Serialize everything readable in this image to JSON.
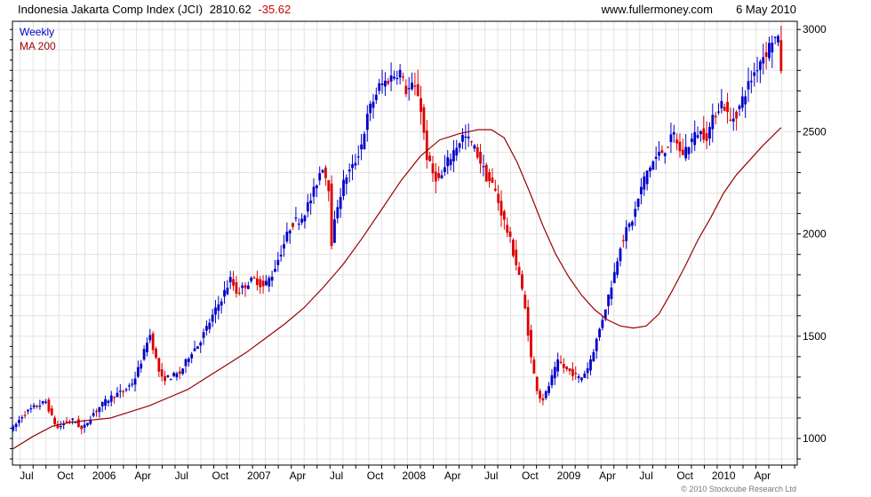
{
  "header": {
    "title": "Indonesia Jakarta Comp Index (JCI)",
    "last": "2810.62",
    "change": "-35.62",
    "site": "www.fullermoney.com",
    "date": "6 May 2010"
  },
  "legend": {
    "weekly": "Weekly",
    "ma": "MA 200"
  },
  "copyright": "© 2010 Stockcube Research Ltd",
  "colors": {
    "up": "#0000cc",
    "down": "#dd0000",
    "ma": "#990000",
    "change": "#cc0000",
    "grid": "#e2e2e2"
  },
  "chart_data": {
    "type": "line",
    "title": "Indonesia Jakarta Comp Index (JCI)",
    "y_ticks": [
      1000,
      1500,
      2000,
      2500,
      3000
    ],
    "y_range": [
      870,
      3040
    ],
    "x_labels": [
      {
        "label": "Jul",
        "m": 6.5
      },
      {
        "label": "Oct",
        "m": 9.5
      },
      {
        "label": "2006",
        "m": 12.5
      },
      {
        "label": "Apr",
        "m": 15.5
      },
      {
        "label": "Jul",
        "m": 18.5
      },
      {
        "label": "Oct",
        "m": 21.5
      },
      {
        "label": "2007",
        "m": 24.5
      },
      {
        "label": "Apr",
        "m": 27.5
      },
      {
        "label": "Jul",
        "m": 30.5
      },
      {
        "label": "Oct",
        "m": 33.5
      },
      {
        "label": "2008",
        "m": 36.5
      },
      {
        "label": "Apr",
        "m": 39.5
      },
      {
        "label": "Jul",
        "m": 42.5
      },
      {
        "label": "Oct",
        "m": 45.5
      },
      {
        "label": "2009",
        "m": 48.5
      },
      {
        "label": "Apr",
        "m": 51.5
      },
      {
        "label": "Jul",
        "m": 54.5
      },
      {
        "label": "Oct",
        "m": 57.5
      },
      {
        "label": "2010",
        "m": 60.5
      },
      {
        "label": "Apr",
        "m": 63.5
      }
    ],
    "x_range": [
      5.4,
      66.2
    ],
    "price_anchors": [
      [
        5.45,
        1050
      ],
      [
        6.2,
        1115
      ],
      [
        7.0,
        1150
      ],
      [
        8.0,
        1180
      ],
      [
        8.5,
        1095
      ],
      [
        8.9,
        1050
      ],
      [
        9.5,
        1080
      ],
      [
        10.2,
        1090
      ],
      [
        10.8,
        1040
      ],
      [
        11.6,
        1120
      ],
      [
        12.4,
        1170
      ],
      [
        13.2,
        1210
      ],
      [
        14.0,
        1230
      ],
      [
        14.8,
        1280
      ],
      [
        15.5,
        1400
      ],
      [
        16.0,
        1520
      ],
      [
        16.4,
        1420
      ],
      [
        16.9,
        1290
      ],
      [
        17.6,
        1300
      ],
      [
        18.4,
        1320
      ],
      [
        19.2,
        1420
      ],
      [
        19.8,
        1460
      ],
      [
        20.6,
        1560
      ],
      [
        21.4,
        1660
      ],
      [
        22.3,
        1780
      ],
      [
        22.8,
        1710
      ],
      [
        23.6,
        1760
      ],
      [
        24.2,
        1780
      ],
      [
        24.8,
        1740
      ],
      [
        25.5,
        1800
      ],
      [
        26.3,
        1930
      ],
      [
        27.0,
        2050
      ],
      [
        27.8,
        2080
      ],
      [
        28.6,
        2180
      ],
      [
        29.4,
        2340
      ],
      [
        29.9,
        2230
      ],
      [
        30.1,
        1950
      ],
      [
        30.6,
        2150
      ],
      [
        31.2,
        2280
      ],
      [
        31.8,
        2330
      ],
      [
        32.4,
        2430
      ],
      [
        33.0,
        2600
      ],
      [
        33.8,
        2720
      ],
      [
        34.6,
        2760
      ],
      [
        35.4,
        2800
      ],
      [
        35.9,
        2700
      ],
      [
        36.4,
        2720
      ],
      [
        36.9,
        2680
      ],
      [
        37.5,
        2380
      ],
      [
        37.9,
        2300
      ],
      [
        38.5,
        2260
      ],
      [
        39.1,
        2350
      ],
      [
        39.7,
        2420
      ],
      [
        40.3,
        2480
      ],
      [
        40.9,
        2450
      ],
      [
        41.5,
        2380
      ],
      [
        42.1,
        2280
      ],
      [
        42.7,
        2230
      ],
      [
        43.3,
        2100
      ],
      [
        43.9,
        1980
      ],
      [
        44.4,
        1860
      ],
      [
        44.7,
        1790
      ],
      [
        45.2,
        1600
      ],
      [
        45.6,
        1380
      ],
      [
        46.0,
        1250
      ],
      [
        46.4,
        1180
      ],
      [
        46.8,
        1230
      ],
      [
        47.2,
        1300
      ],
      [
        47.7,
        1380
      ],
      [
        48.2,
        1340
      ],
      [
        48.8,
        1320
      ],
      [
        49.4,
        1290
      ],
      [
        50.0,
        1350
      ],
      [
        50.6,
        1470
      ],
      [
        51.0,
        1560
      ],
      [
        51.5,
        1680
      ],
      [
        52.0,
        1800
      ],
      [
        52.5,
        1950
      ],
      [
        53.0,
        2020
      ],
      [
        53.5,
        2080
      ],
      [
        54.0,
        2200
      ],
      [
        54.5,
        2300
      ],
      [
        55.2,
        2370
      ],
      [
        56.0,
        2420
      ],
      [
        56.7,
        2490
      ],
      [
        57.2,
        2380
      ],
      [
        57.8,
        2440
      ],
      [
        58.5,
        2500
      ],
      [
        59.2,
        2480
      ],
      [
        59.9,
        2600
      ],
      [
        60.4,
        2650
      ],
      [
        61.0,
        2550
      ],
      [
        61.6,
        2600
      ],
      [
        62.2,
        2700
      ],
      [
        62.8,
        2780
      ],
      [
        63.4,
        2860
      ],
      [
        63.9,
        2900
      ],
      [
        64.3,
        2960
      ],
      [
        64.7,
        2950
      ],
      [
        64.95,
        2810
      ]
    ],
    "ma200": [
      [
        5.45,
        950
      ],
      [
        7.0,
        1010
      ],
      [
        8.5,
        1060
      ],
      [
        10.0,
        1080
      ],
      [
        11.5,
        1090
      ],
      [
        13.0,
        1100
      ],
      [
        14.5,
        1130
      ],
      [
        16.0,
        1160
      ],
      [
        17.5,
        1200
      ],
      [
        19.0,
        1240
      ],
      [
        20.5,
        1300
      ],
      [
        22.0,
        1360
      ],
      [
        23.5,
        1420
      ],
      [
        25.0,
        1490
      ],
      [
        26.5,
        1560
      ],
      [
        28.0,
        1640
      ],
      [
        29.5,
        1740
      ],
      [
        31.0,
        1850
      ],
      [
        32.5,
        1980
      ],
      [
        34.0,
        2120
      ],
      [
        35.5,
        2260
      ],
      [
        37.0,
        2380
      ],
      [
        38.5,
        2460
      ],
      [
        40.0,
        2490
      ],
      [
        41.5,
        2510
      ],
      [
        42.5,
        2510
      ],
      [
        43.5,
        2470
      ],
      [
        44.5,
        2350
      ],
      [
        45.5,
        2200
      ],
      [
        46.5,
        2040
      ],
      [
        47.5,
        1900
      ],
      [
        48.5,
        1790
      ],
      [
        49.5,
        1700
      ],
      [
        50.5,
        1630
      ],
      [
        51.5,
        1580
      ],
      [
        52.5,
        1550
      ],
      [
        53.5,
        1540
      ],
      [
        54.5,
        1550
      ],
      [
        55.5,
        1610
      ],
      [
        56.5,
        1720
      ],
      [
        57.5,
        1840
      ],
      [
        58.5,
        1970
      ],
      [
        59.5,
        2080
      ],
      [
        60.5,
        2200
      ],
      [
        61.5,
        2290
      ],
      [
        62.5,
        2360
      ],
      [
        63.5,
        2430
      ],
      [
        64.95,
        2520
      ]
    ]
  }
}
